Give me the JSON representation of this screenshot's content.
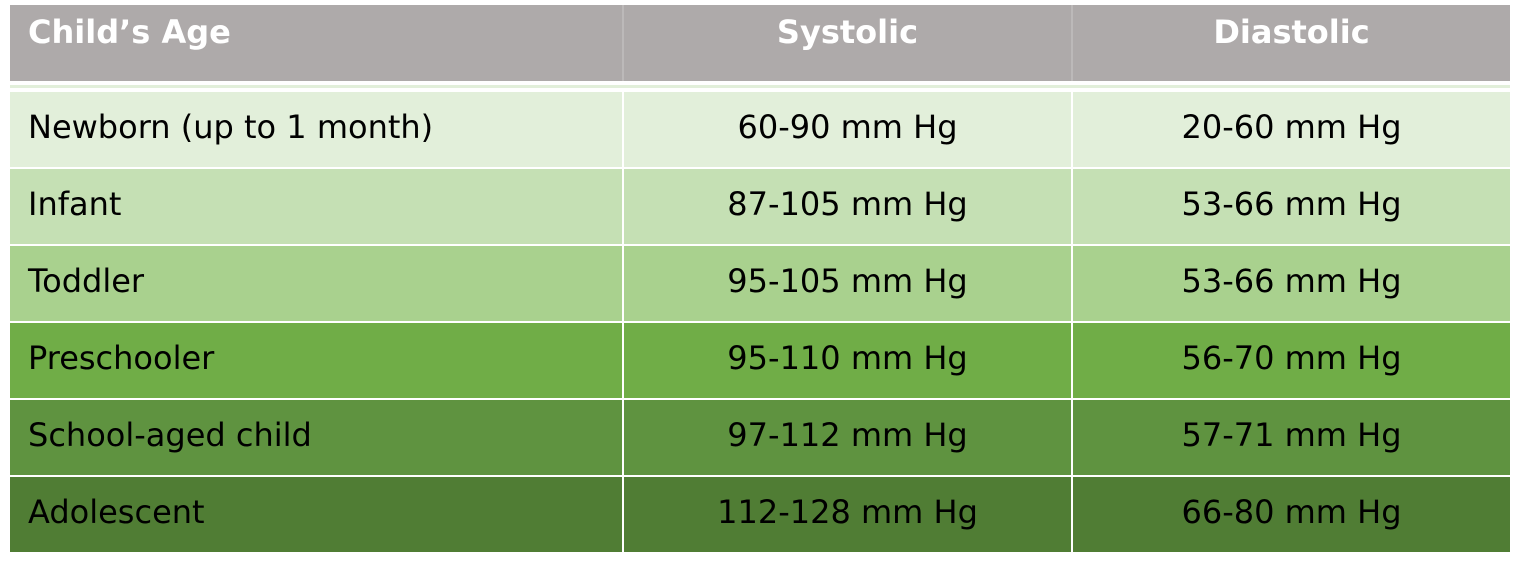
{
  "table": {
    "header": [
      "Child’s Age",
      "Systolic",
      "Diastolic"
    ],
    "rows": [
      [
        "Newborn (up to 1 month)",
        "60-90 mm Hg",
        "20-60 mm Hg"
      ],
      [
        "Infant",
        "87-105 mm Hg",
        "53-66 mm Hg"
      ],
      [
        "Toddler",
        "95-105 mm Hg",
        "53-66 mm Hg"
      ],
      [
        "Preschooler",
        "95-110 mm Hg",
        "56-70 mm Hg"
      ],
      [
        "School-aged child",
        "97-112 mm Hg",
        "57-71 mm Hg"
      ],
      [
        "Adolescent",
        "112-128 mm Hg",
        "66-80 mm Hg"
      ]
    ]
  }
}
